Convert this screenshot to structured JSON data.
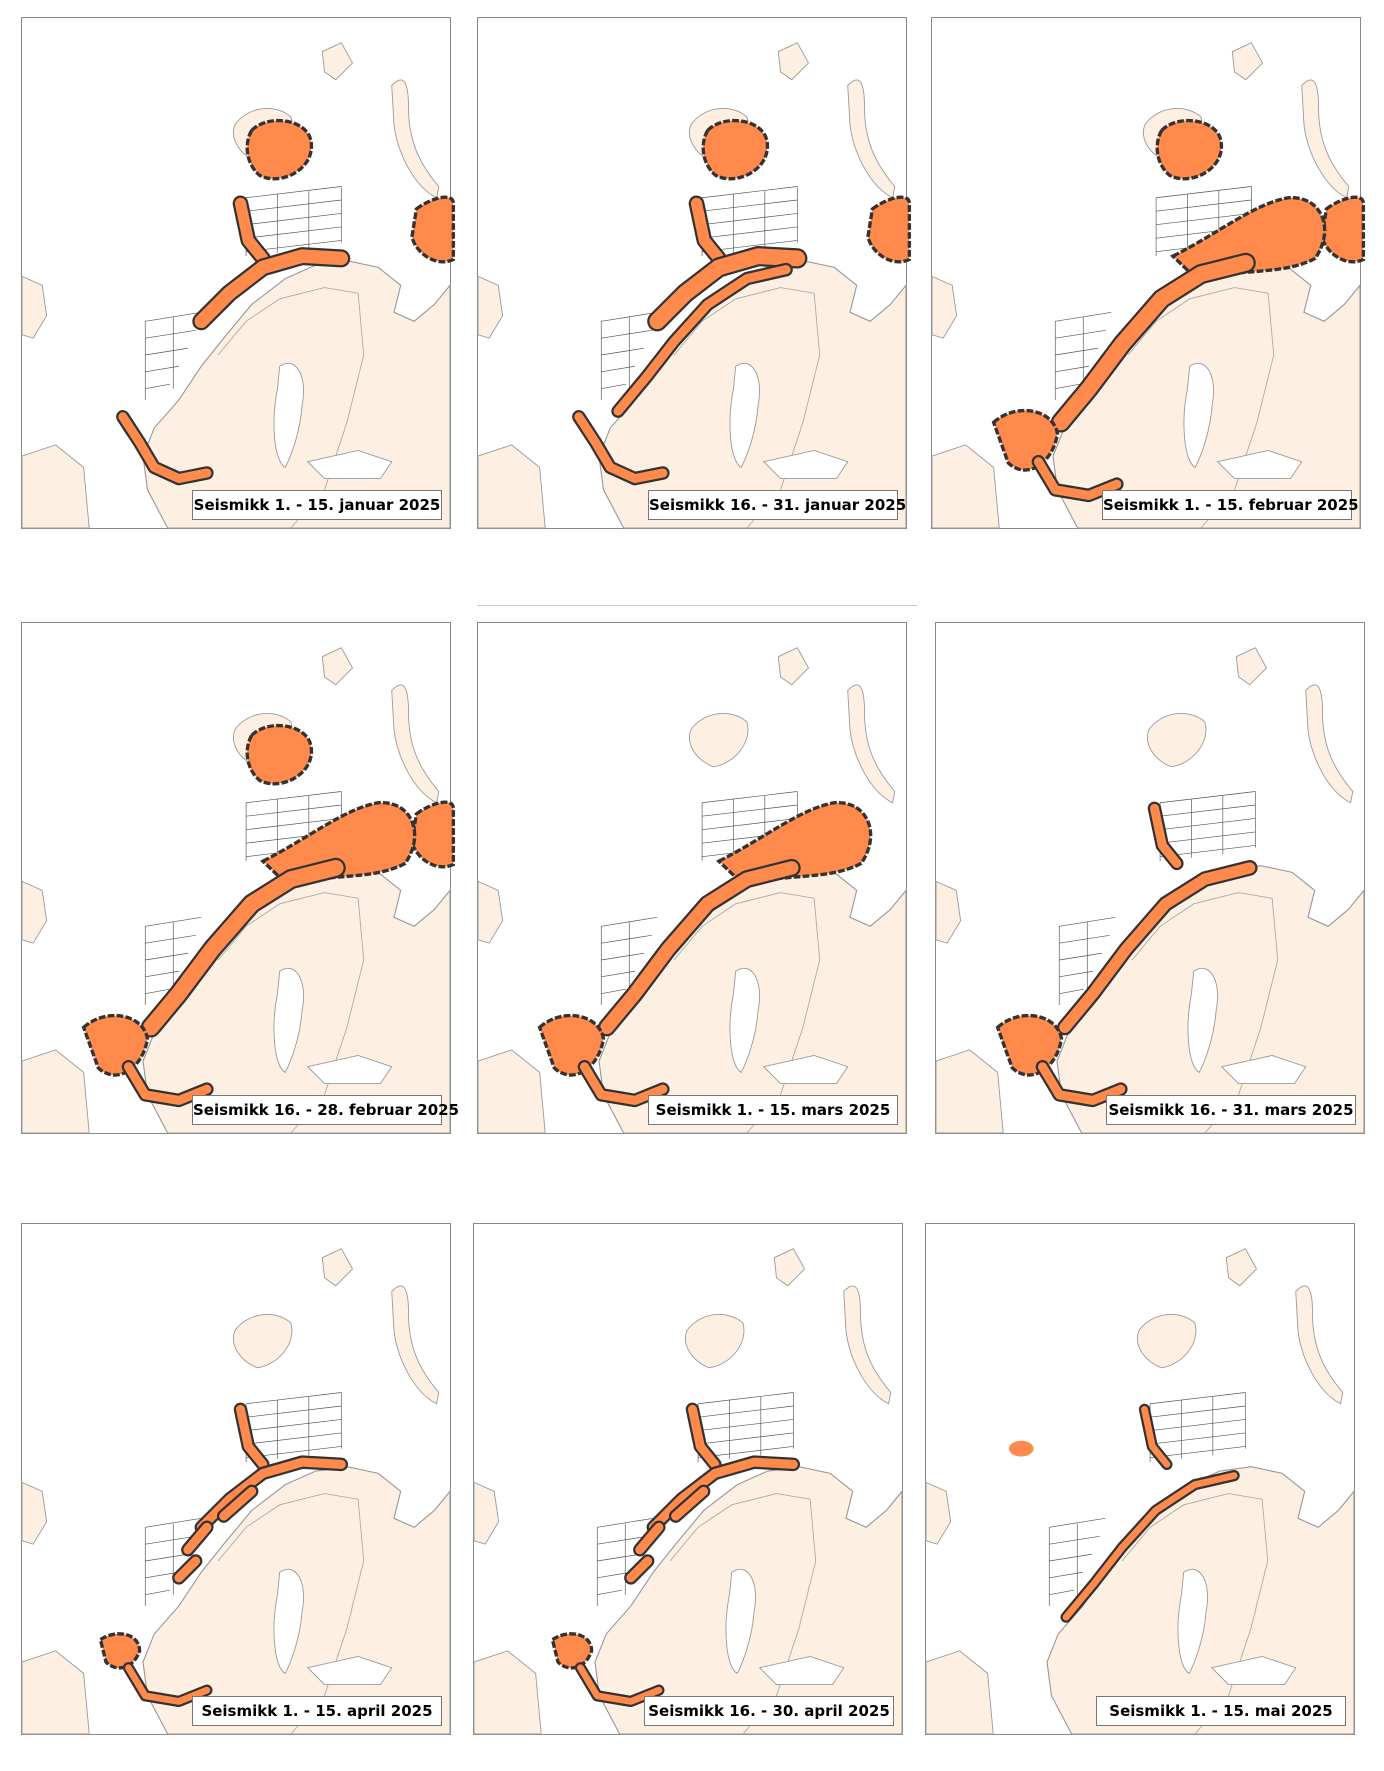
{
  "panels": [
    {
      "label": "Seismikk 1. - 15. januar 2025"
    },
    {
      "label": "Seismikk 16. - 31. januar 2025"
    },
    {
      "label": "Seismikk 1. - 15. februar 2025"
    },
    {
      "label": "Seismikk 16. - 28. februar 2025"
    },
    {
      "label": "Seismikk 1. - 15. mars 2025"
    },
    {
      "label": "Seismikk 16. - 31. mars 2025"
    },
    {
      "label": "Seismikk 1. - 15. april 2025"
    },
    {
      "label": "Seismikk 16. - 30. april 2025"
    },
    {
      "label": "Seismikk 1. - 15. mai 2025"
    }
  ]
}
